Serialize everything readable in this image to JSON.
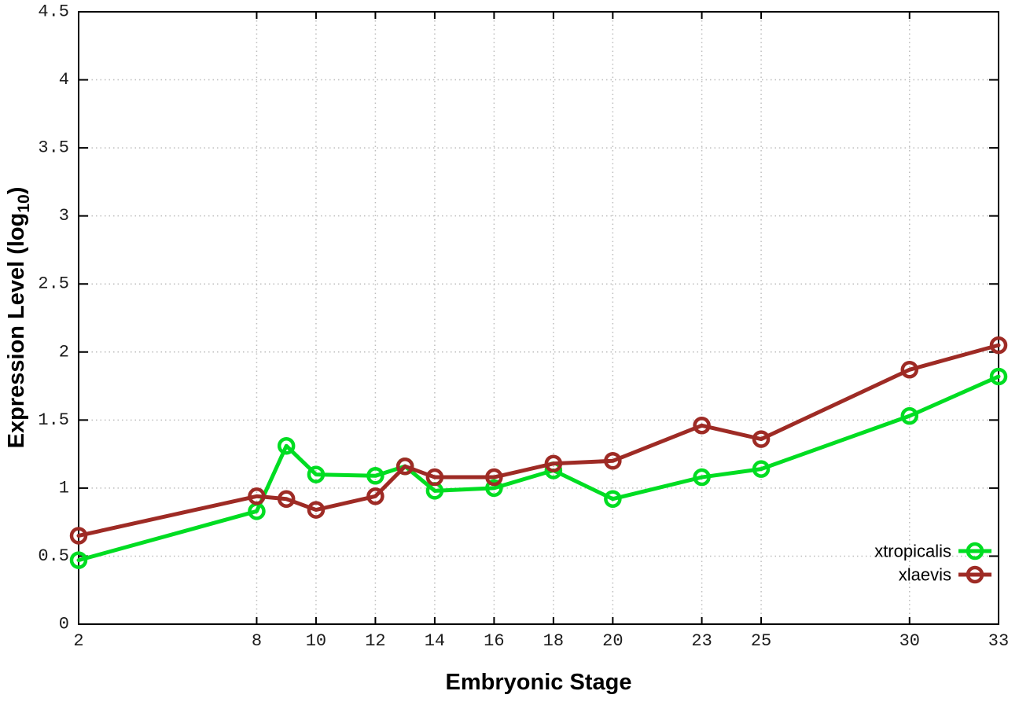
{
  "chart_data": {
    "type": "line",
    "title": "",
    "xlabel": "Embryonic Stage",
    "ylabel": {
      "prefix": "Expression Level (log",
      "subscript": "10",
      "suffix": ")"
    },
    "x": [
      2,
      8,
      9,
      10,
      12,
      13,
      14,
      16,
      18,
      20,
      23,
      25,
      30,
      33
    ],
    "series": [
      {
        "name": "xtropicalis",
        "color": "#00dd22",
        "marker": "open-circle",
        "values": [
          0.47,
          0.83,
          1.31,
          1.1,
          1.09,
          1.16,
          0.98,
          1.0,
          1.13,
          0.92,
          1.08,
          1.14,
          1.53,
          1.82
        ]
      },
      {
        "name": "xlaevis",
        "color": "#9e2b25",
        "marker": "open-circle",
        "values": [
          0.65,
          0.94,
          0.92,
          0.84,
          0.94,
          1.16,
          1.08,
          1.08,
          1.18,
          1.2,
          1.46,
          1.36,
          1.87,
          2.05
        ]
      }
    ],
    "xlim": [
      2,
      33
    ],
    "ylim": [
      0,
      4.5
    ],
    "x_ticks": {
      "values": [
        2,
        8,
        10,
        12,
        14,
        16,
        18,
        20,
        23,
        25,
        30,
        33
      ],
      "labels": [
        "2",
        "8",
        "10",
        "12",
        "14",
        "16",
        "18",
        "20",
        "23",
        "25",
        "30",
        "33"
      ]
    },
    "y_ticks": {
      "values": [
        0,
        0.5,
        1,
        1.5,
        2,
        2.5,
        3,
        3.5,
        4,
        4.5
      ],
      "labels": [
        "0",
        "0.5",
        "1",
        "1.5",
        "2",
        "2.5",
        "3",
        "3.5",
        "4",
        "4.5"
      ]
    },
    "grid": "dotted",
    "legend_position": "inside-bottom-right",
    "colors": {
      "axis": "#000000",
      "grid": "#bdbdbd",
      "tick_label": "#1c1c1c",
      "background": "#ffffff"
    }
  }
}
